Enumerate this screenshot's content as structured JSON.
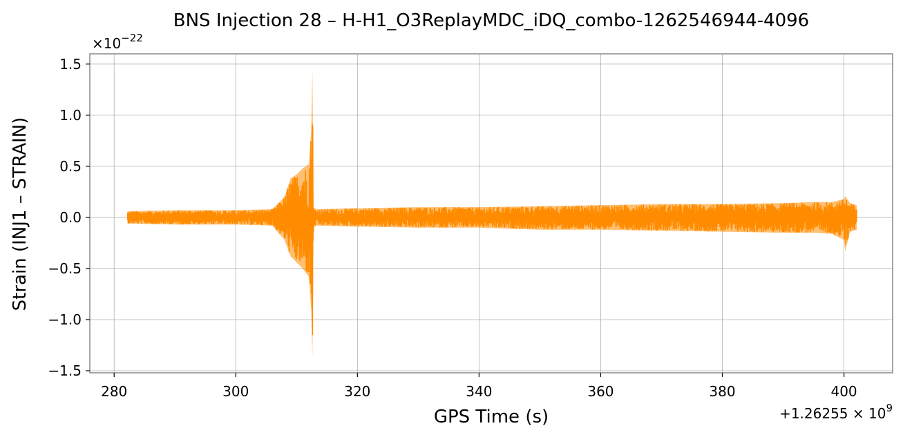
{
  "chart_data": {
    "type": "line",
    "title": "BNS Injection 28 – H-H1_O3ReplayMDC_iDQ_combo-1262546944-4096",
    "xlabel": "GPS Time (s)",
    "ylabel": "Strain (INJ1 – STRAIN)",
    "x_offset_label": "+1.26255 × 10",
    "x_offset_exponent": "9",
    "y_scale_label": "×10",
    "y_scale_exponent": "−22",
    "xlim": [
      276,
      408
    ],
    "ylim": [
      -1.52,
      1.6
    ],
    "x_ticks": [
      280,
      300,
      320,
      340,
      360,
      380,
      400
    ],
    "x_tick_labels": [
      "280",
      "300",
      "320",
      "340",
      "360",
      "380",
      "400"
    ],
    "y_ticks": [
      -1.5,
      -1.0,
      -0.5,
      0.0,
      0.5,
      1.0,
      1.5
    ],
    "y_tick_labels": [
      "−1.5",
      "−1.0",
      "−0.5",
      "0.0",
      "0.5",
      "1.0",
      "1.5"
    ],
    "grid": true,
    "series": [
      {
        "color": "#ff8c00",
        "x_range": [
          282.2,
          402.1
        ],
        "noise_envelope": {
          "x": [
            282.2,
            290,
            300,
            306,
            308,
            309,
            310,
            311,
            312,
            312.4,
            312.6,
            312.8,
            313.2,
            320,
            330,
            340,
            350,
            360,
            370,
            380,
            390,
            395,
            398,
            400,
            400.2,
            401,
            402.1
          ],
          "upper": [
            0.06,
            0.07,
            0.07,
            0.08,
            0.2,
            0.38,
            0.42,
            0.48,
            0.52,
            0.85,
            1.45,
            0.1,
            0.08,
            0.09,
            0.1,
            0.1,
            0.11,
            0.12,
            0.13,
            0.13,
            0.14,
            0.15,
            0.15,
            0.18,
            0.21,
            0.14,
            0.12
          ],
          "lower": [
            -0.06,
            -0.07,
            -0.07,
            -0.08,
            -0.22,
            -0.38,
            -0.44,
            -0.5,
            -0.58,
            -0.9,
            -1.37,
            -0.1,
            -0.08,
            -0.09,
            -0.1,
            -0.1,
            -0.12,
            -0.12,
            -0.13,
            -0.14,
            -0.15,
            -0.15,
            -0.16,
            -0.22,
            -0.33,
            -0.14,
            -0.12
          ]
        }
      }
    ]
  }
}
